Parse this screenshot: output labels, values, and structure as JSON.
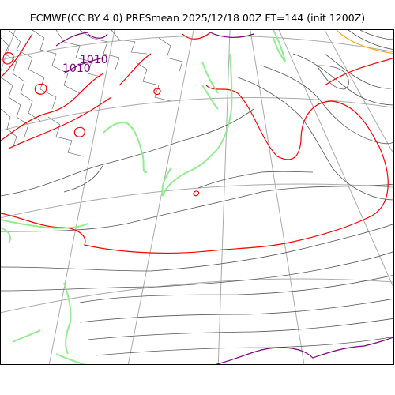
{
  "title": "ECMWF(CC BY 4.0) PRESmean 2025/12/18 00Z FT=144 (init 1200Z)",
  "colors": {
    "coastline": "#90ee90",
    "isobar_thin": "#555555",
    "isobar_1000": "#ff0000",
    "isobar_1010": "#800080",
    "isobar_high": "#ffa500",
    "graticule": "#aaaaaa"
  },
  "labels": {
    "isobar_1010_a": "1010",
    "isobar_1010_b": "1010"
  }
}
